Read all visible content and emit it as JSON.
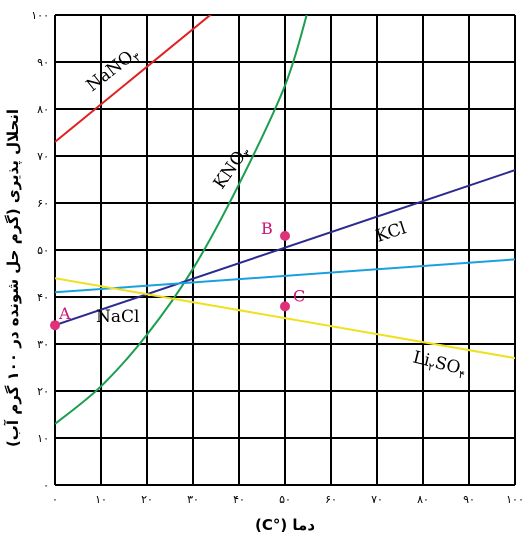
{
  "chart_data": {
    "type": "line",
    "xlabel": "دما (°C)",
    "ylabel": "انحلال پذیری (گرم حل شونده در ۱۰۰ گرم آب)",
    "xlim": [
      0,
      100
    ],
    "ylim": [
      0,
      100
    ],
    "x_ticks": [
      "۰",
      "۱۰",
      "۲۰",
      "۳۰",
      "۴۰",
      "۵۰",
      "۶۰",
      "۷۰",
      "۸۰",
      "۹۰",
      "۱۰۰"
    ],
    "y_ticks": [
      "۰",
      "۱۰",
      "۲۰",
      "۳۰",
      "۴۰",
      "۵۰",
      "۶۰",
      "۷۰",
      "۸۰",
      "۹۰",
      "۱۰۰"
    ],
    "grid": true,
    "series": [
      {
        "name": "NaNO",
        "sub": "۳",
        "color": "#e02020",
        "x": [
          0,
          35
        ],
        "y": [
          73,
          101
        ]
      },
      {
        "name": "KNO",
        "sub": "۳",
        "color": "#1a9e50",
        "x": [
          0,
          10,
          20,
          30,
          40,
          50,
          55
        ],
        "y": [
          13,
          21,
          32,
          46,
          64,
          85,
          101
        ]
      },
      {
        "name": "KCl",
        "sub": "",
        "color": "#2b2b8f",
        "x": [
          0,
          100
        ],
        "y": [
          34,
          67
        ]
      },
      {
        "name": "NaCl",
        "sub": "",
        "color": "#1aa0e0",
        "x": [
          0,
          100
        ],
        "y": [
          41,
          48
        ]
      },
      {
        "name": "Li",
        "sub": "۲",
        "name2": "SO",
        "sub2": "۴",
        "color": "#f0e020",
        "x": [
          0,
          100
        ],
        "y": [
          44,
          27
        ]
      }
    ],
    "points": [
      {
        "label": "A",
        "x": 0,
        "y": 34
      },
      {
        "label": "B",
        "x": 50,
        "y": 53
      },
      {
        "label": "C",
        "x": 50,
        "y": 38
      }
    ],
    "point_color": "#e0307a"
  }
}
